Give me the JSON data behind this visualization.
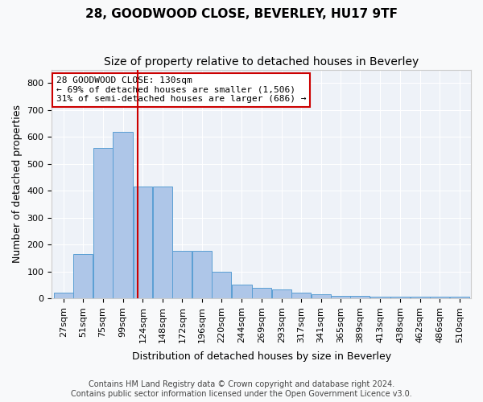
{
  "title": "28, GOODWOOD CLOSE, BEVERLEY, HU17 9TF",
  "subtitle": "Size of property relative to detached houses in Beverley",
  "xlabel": "Distribution of detached houses by size in Beverley",
  "ylabel": "Number of detached properties",
  "bar_color": "#aec6e8",
  "bar_edge_color": "#5a9fd4",
  "background_color": "#eef2f8",
  "grid_color": "#ffffff",
  "annotation_box_color": "#cc0000",
  "vline_color": "#cc0000",
  "vline_x": 130,
  "annotation_text": "28 GOODWOOD CLOSE: 130sqm\n← 69% of detached houses are smaller (1,506)\n31% of semi-detached houses are larger (686) →",
  "categories": [
    "27sqm",
    "51sqm",
    "75sqm",
    "99sqm",
    "124sqm",
    "148sqm",
    "172sqm",
    "196sqm",
    "220sqm",
    "244sqm",
    "269sqm",
    "293sqm",
    "317sqm",
    "341sqm",
    "365sqm",
    "389sqm",
    "413sqm",
    "438sqm",
    "462sqm",
    "486sqm",
    "510sqm"
  ],
  "bin_edges": [
    27,
    51,
    75,
    99,
    124,
    148,
    172,
    196,
    220,
    244,
    269,
    293,
    317,
    341,
    365,
    389,
    413,
    438,
    462,
    486,
    510
  ],
  "bin_widths": [
    24,
    24,
    24,
    25,
    24,
    24,
    24,
    24,
    24,
    25,
    24,
    24,
    24,
    24,
    24,
    24,
    25,
    24,
    24,
    24,
    24
  ],
  "values": [
    20,
    165,
    560,
    620,
    415,
    415,
    175,
    175,
    100,
    52,
    40,
    32,
    22,
    15,
    8,
    8,
    5,
    5,
    5,
    5,
    5
  ],
  "ylim": [
    0,
    850
  ],
  "yticks": [
    0,
    100,
    200,
    300,
    400,
    500,
    600,
    700,
    800
  ],
  "footer": "Contains HM Land Registry data © Crown copyright and database right 2024.\nContains public sector information licensed under the Open Government Licence v3.0.",
  "title_fontsize": 11,
  "subtitle_fontsize": 10,
  "axis_label_fontsize": 9,
  "tick_fontsize": 8,
  "annotation_fontsize": 8,
  "footer_fontsize": 7
}
